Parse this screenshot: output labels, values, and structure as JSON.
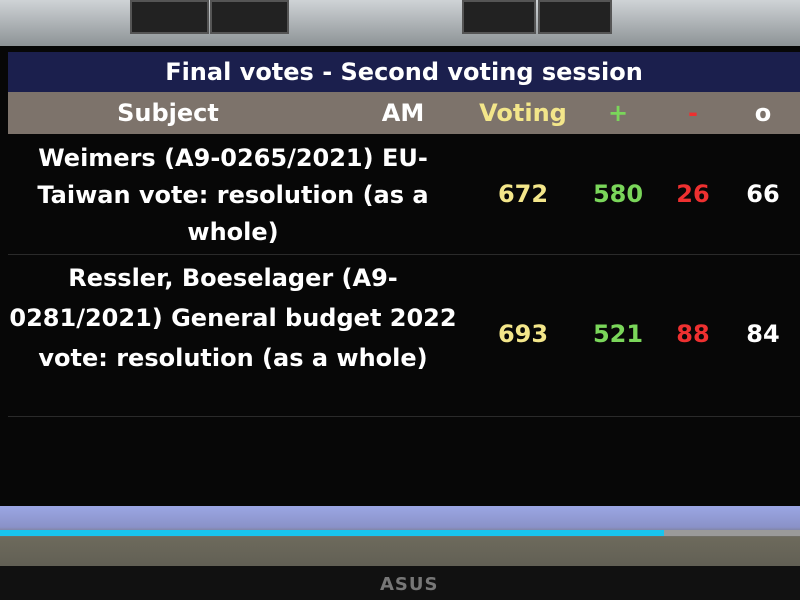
{
  "title": "Final votes - Second voting session",
  "columns": {
    "subject": "Subject",
    "am": "AM",
    "voting": "Voting",
    "plus": "+",
    "minus": "-",
    "abstain": "o"
  },
  "rows": [
    {
      "subject": "Weimers (A9-0265/2021) EU-Taiwan vote: resolution (as a whole)",
      "voting": "672",
      "plus": "580",
      "minus": "26",
      "abstain": "66"
    },
    {
      "subject": "Ressler, Boeselager (A9-0281/2021) General budget 2022 vote: resolution (as a whole)",
      "voting": "693",
      "plus": "521",
      "minus": "88",
      "abstain": "84"
    }
  ],
  "progress_percent": 83,
  "monitor_brand": "ASUS",
  "colors": {
    "title_bg": "#1b1f4d",
    "header_bg": "#7d736b",
    "voting": "#f3e68a",
    "plus": "#7ad65a",
    "minus": "#ee3030",
    "progress": "#19c4ee"
  }
}
